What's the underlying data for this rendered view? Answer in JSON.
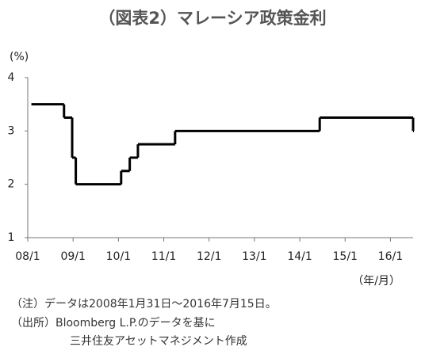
{
  "chart_data": {
    "type": "step",
    "title": "（図表2）マレーシア政策金利",
    "y_unit": "(%)",
    "x_unit": "（年/月）",
    "notes": [
      "（注）データは2008年1月31日～2016年7月15日。",
      "（出所）Bloomberg L.P.のデータを基に",
      "三井住友アセットマネジメント作成"
    ],
    "x": [
      2008.08,
      2008.8,
      2008.98,
      2009.06,
      2010.06,
      2010.25,
      2010.43,
      2011.25,
      2014.44,
      2016.5
    ],
    "values": [
      3.5,
      3.25,
      2.5,
      2,
      2.25,
      2.5,
      2.75,
      3,
      3.25,
      3
    ],
    "color": "#000000",
    "xlim": [
      2008,
      2016.5
    ],
    "ylim": [
      1,
      4
    ],
    "yticks": [
      1,
      2,
      3,
      4
    ],
    "xticks": [
      {
        "value": 2008,
        "label": "08/1"
      },
      {
        "value": 2009,
        "label": "09/1"
      },
      {
        "value": 2010,
        "label": "10/1"
      },
      {
        "value": 2011,
        "label": "11/1"
      },
      {
        "value": 2012,
        "label": "12/1"
      },
      {
        "value": 2013,
        "label": "13/1"
      },
      {
        "value": 2014,
        "label": "14/1"
      },
      {
        "value": 2015,
        "label": "15/1"
      },
      {
        "value": 2016,
        "label": "16/1"
      }
    ],
    "grid": false
  }
}
